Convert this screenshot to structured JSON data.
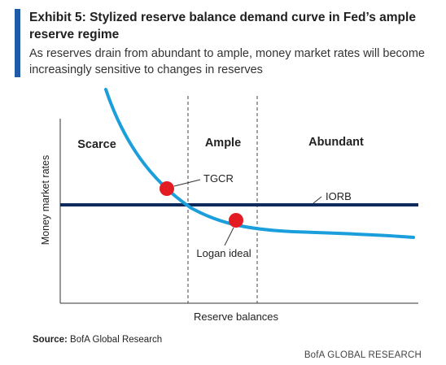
{
  "header": {
    "title": "Exhibit 5: Stylized reserve balance demand curve in Fed’s ample reserve regime",
    "subtitle": "As reserves drain from abundant to ample, money market rates will become increasingly sensitive to changes in reserves"
  },
  "chart_data": {
    "type": "line",
    "xlabel": "Reserve balances",
    "ylabel": "Money market rates",
    "regions": [
      "Scarce",
      "Ample",
      "Abundant"
    ],
    "series": [
      {
        "name": "Demand curve",
        "color": "#1a9fdc"
      },
      {
        "name": "IORB",
        "color": "#0f2a5c"
      }
    ],
    "annotations": [
      {
        "label": "TGCR",
        "color": "#e31b23"
      },
      {
        "label": "Logan ideal",
        "color": "#e31b23"
      }
    ],
    "grid": false
  },
  "footer": {
    "source_label": "Source:",
    "source_text": " BofA Global Research",
    "brand": "BofA GLOBAL RESEARCH"
  }
}
